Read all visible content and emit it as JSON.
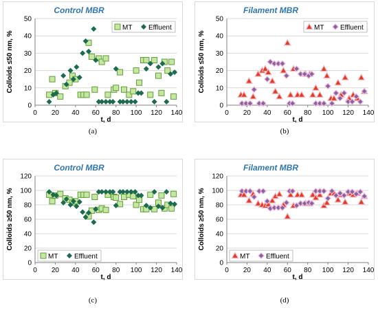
{
  "chart_data": [
    {
      "panel": "(a)",
      "type": "scatter",
      "title": "Control MBR",
      "xlabel": "t, d",
      "ylabel": "Colloids ≤50 nm, %",
      "xlim": [
        0,
        140
      ],
      "ylim": [
        0,
        50
      ],
      "xticks": [
        0,
        20,
        40,
        60,
        80,
        100,
        120,
        140
      ],
      "yticks": [
        0,
        10,
        20,
        30,
        40,
        50
      ],
      "grid": true,
      "legend_position": "top-right",
      "series": [
        {
          "name": "MT",
          "marker": "square",
          "color": "#92d050",
          "x": [
            14,
            17,
            20,
            25,
            30,
            34,
            37,
            40,
            45,
            48,
            51,
            53,
            56,
            59,
            63,
            66,
            70,
            72,
            78,
            80,
            84,
            88,
            93,
            97,
            100,
            103,
            107,
            110,
            114,
            118,
            122,
            125,
            128,
            131,
            135,
            137
          ],
          "y": [
            6,
            15,
            7,
            5,
            11,
            13,
            17,
            15,
            6,
            6,
            6,
            36,
            28,
            9,
            27,
            25,
            27,
            6,
            9,
            10,
            19,
            9,
            6,
            8,
            20,
            13,
            26,
            26,
            6,
            26,
            17,
            7,
            25,
            20,
            25,
            5
          ]
        },
        {
          "name": "Effluent",
          "marker": "diamond",
          "color": "#1d6b4e",
          "x": [
            14,
            18,
            21,
            28,
            31,
            35,
            38,
            41,
            44,
            47,
            50,
            53,
            58,
            60,
            63,
            66,
            70,
            74,
            77,
            80,
            84,
            87,
            91,
            95,
            99,
            102,
            105,
            110,
            114,
            118,
            122,
            126,
            130,
            134,
            138
          ],
          "y": [
            2,
            6,
            7,
            17,
            12,
            20,
            15,
            22,
            16,
            30,
            37,
            31,
            44,
            26,
            2,
            2,
            2,
            2,
            2,
            21,
            2,
            2,
            2,
            2,
            2,
            7,
            7,
            21,
            24,
            2,
            22,
            24,
            2,
            18,
            19
          ]
        }
      ]
    },
    {
      "panel": "(b)",
      "type": "scatter",
      "title": "Filament MBR",
      "xlabel": "t, d",
      "ylabel": "Colloids ≤50 nm, %",
      "xlim": [
        0,
        140
      ],
      "ylim": [
        0,
        50
      ],
      "xticks": [
        0,
        20,
        40,
        60,
        80,
        100,
        120,
        140
      ],
      "yticks": [
        0,
        10,
        20,
        30,
        40,
        50
      ],
      "grid": true,
      "legend_position": "top-right",
      "series": [
        {
          "name": "MT",
          "marker": "triangle",
          "color": "#e03c1e",
          "x": [
            14,
            17,
            22,
            26,
            31,
            35,
            38,
            41,
            45,
            48,
            52,
            56,
            60,
            63,
            66,
            70,
            74,
            78,
            82,
            85,
            88,
            92,
            96,
            99,
            103,
            106,
            110,
            113,
            117,
            121,
            125,
            129,
            133,
            136
          ],
          "y": [
            6,
            6,
            14,
            5,
            18,
            20,
            21,
            19,
            14,
            8,
            5,
            20,
            36,
            6,
            21,
            6,
            6,
            18,
            18,
            6,
            10,
            6,
            21,
            17,
            4,
            4,
            13,
            6,
            16,
            4,
            6,
            4,
            16,
            8
          ]
        },
        {
          "name": "Effluent",
          "marker": "diamond",
          "color": "#8264a2",
          "x": [
            15,
            19,
            23,
            27,
            32,
            36,
            40,
            43,
            47,
            51,
            55,
            59,
            62,
            65,
            69,
            73,
            77,
            81,
            84,
            88,
            92,
            96,
            100,
            104,
            108,
            112,
            116,
            120,
            124,
            128,
            132,
            136
          ],
          "y": [
            1,
            1,
            1,
            9,
            1,
            1,
            15,
            25,
            24,
            24,
            24,
            17,
            1,
            1,
            21,
            18,
            18,
            17,
            18,
            1,
            1,
            1,
            11,
            1,
            7,
            4,
            7,
            2,
            2,
            5,
            2,
            8
          ]
        }
      ]
    },
    {
      "panel": "(c)",
      "type": "scatter",
      "title": "Control MBR",
      "xlabel": "t, d",
      "ylabel": "Colloids ≥50 nm, %",
      "xlim": [
        0,
        140
      ],
      "ylim": [
        0,
        120
      ],
      "xticks": [
        0,
        20,
        40,
        60,
        80,
        100,
        120,
        140
      ],
      "yticks": [
        0,
        20,
        40,
        60,
        80,
        100,
        120
      ],
      "grid": true,
      "legend_position": "bottom-left",
      "series": [
        {
          "name": "MT",
          "marker": "square",
          "color": "#92d050",
          "x": [
            14,
            17,
            20,
            25,
            30,
            34,
            37,
            40,
            45,
            48,
            51,
            53,
            56,
            59,
            63,
            66,
            70,
            72,
            78,
            80,
            84,
            88,
            93,
            97,
            100,
            103,
            107,
            110,
            114,
            118,
            122,
            125,
            128,
            131,
            135,
            137
          ],
          "y": [
            94,
            85,
            93,
            95,
            89,
            87,
            83,
            85,
            94,
            94,
            94,
            64,
            72,
            91,
            73,
            75,
            73,
            94,
            91,
            90,
            81,
            91,
            94,
            92,
            80,
            87,
            74,
            74,
            94,
            74,
            83,
            93,
            75,
            80,
            75,
            95
          ]
        },
        {
          "name": "Effluent",
          "marker": "diamond",
          "color": "#1d6b4e",
          "x": [
            14,
            18,
            21,
            28,
            31,
            35,
            38,
            41,
            44,
            47,
            50,
            53,
            58,
            60,
            63,
            66,
            70,
            74,
            77,
            80,
            84,
            87,
            91,
            95,
            99,
            102,
            105,
            110,
            114,
            118,
            122,
            126,
            130,
            134,
            138
          ],
          "y": [
            98,
            94,
            93,
            83,
            88,
            80,
            85,
            78,
            84,
            70,
            63,
            69,
            56,
            74,
            98,
            98,
            98,
            98,
            98,
            79,
            98,
            98,
            98,
            98,
            98,
            93,
            93,
            79,
            76,
            98,
            78,
            76,
            98,
            82,
            81
          ]
        }
      ]
    },
    {
      "panel": "(d)",
      "type": "scatter",
      "title": "Filament MBR",
      "xlabel": "t, d",
      "ylabel": "Colloids ≥50 nm, %",
      "xlim": [
        0,
        140
      ],
      "ylim": [
        0,
        120
      ],
      "xticks": [
        0,
        20,
        40,
        60,
        80,
        100,
        120,
        140
      ],
      "yticks": [
        0,
        20,
        40,
        60,
        80,
        100,
        120
      ],
      "grid": true,
      "legend_position": "bottom-left",
      "series": [
        {
          "name": "MT",
          "marker": "triangle",
          "color": "#e03c1e",
          "x": [
            14,
            17,
            22,
            26,
            31,
            35,
            38,
            41,
            45,
            48,
            52,
            56,
            60,
            63,
            66,
            70,
            74,
            78,
            82,
            85,
            88,
            92,
            96,
            99,
            103,
            106,
            110,
            113,
            117,
            121,
            125,
            129,
            133,
            136
          ],
          "y": [
            94,
            94,
            86,
            95,
            82,
            80,
            79,
            81,
            86,
            92,
            95,
            80,
            64,
            94,
            79,
            94,
            94,
            82,
            82,
            94,
            90,
            94,
            79,
            83,
            96,
            96,
            87,
            94,
            84,
            96,
            94,
            96,
            84,
            92
          ]
        },
        {
          "name": "Effluent",
          "marker": "diamond",
          "color": "#8264a2",
          "x": [
            15,
            19,
            23,
            27,
            32,
            36,
            40,
            43,
            47,
            51,
            55,
            59,
            62,
            65,
            69,
            73,
            77,
            81,
            84,
            88,
            92,
            96,
            100,
            104,
            108,
            112,
            116,
            120,
            124,
            128,
            132,
            136
          ],
          "y": [
            99,
            99,
            99,
            91,
            99,
            99,
            85,
            75,
            76,
            76,
            76,
            83,
            99,
            99,
            79,
            82,
            82,
            83,
            82,
            99,
            99,
            99,
            89,
            99,
            93,
            96,
            93,
            98,
            98,
            95,
            98,
            92
          ]
        }
      ]
    }
  ],
  "captions": [
    "(a)",
    "(b)",
    "(c)",
    "(d)"
  ]
}
